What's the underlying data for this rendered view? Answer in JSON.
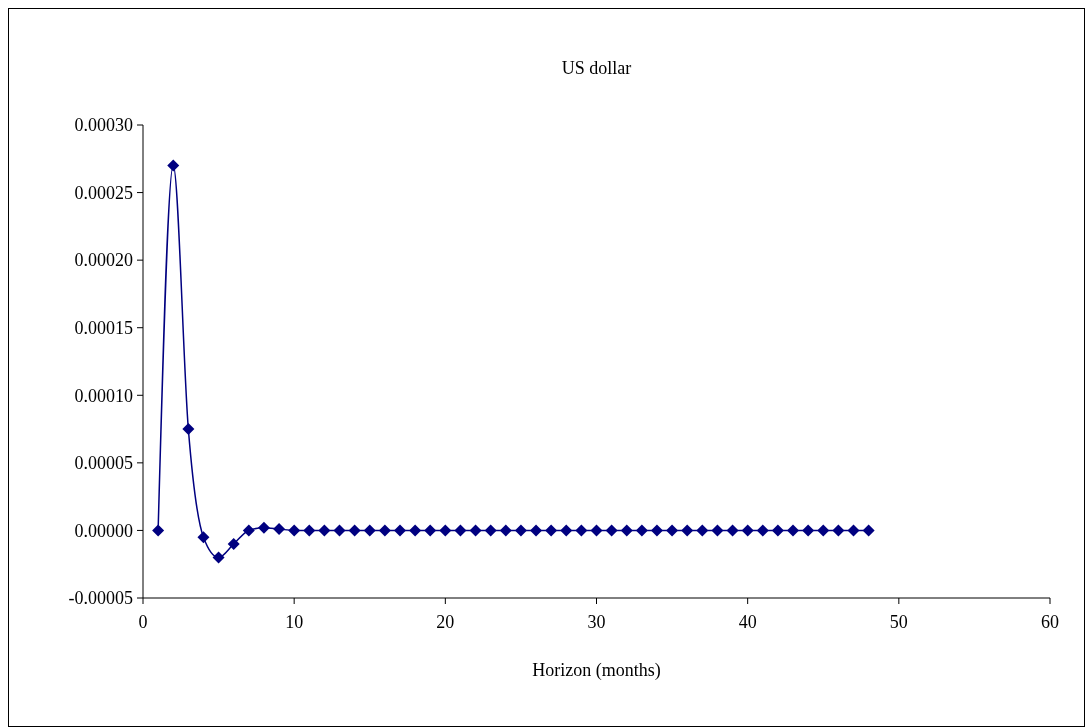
{
  "chart_data": {
    "type": "line",
    "title": "US dollar",
    "xlabel": "Horizon (months)",
    "x": [
      1,
      2,
      3,
      4,
      5,
      6,
      7,
      8,
      9,
      10,
      11,
      12,
      13,
      14,
      15,
      16,
      17,
      18,
      19,
      20,
      21,
      22,
      23,
      24,
      25,
      26,
      27,
      28,
      29,
      30,
      31,
      32,
      33,
      34,
      35,
      36,
      37,
      38,
      39,
      40,
      41,
      42,
      43,
      44,
      45,
      46,
      47,
      48
    ],
    "series": [
      {
        "color": "#000080",
        "values": [
          0,
          0.00027,
          7.5e-05,
          -5e-06,
          -2e-05,
          -1e-05,
          0,
          2e-06,
          1e-06,
          0,
          0,
          0,
          0,
          0,
          0,
          0,
          0,
          0,
          0,
          0,
          0,
          0,
          0,
          0,
          0,
          0,
          0,
          0,
          0,
          0,
          0,
          0,
          0,
          0,
          0,
          0,
          0,
          0,
          0,
          0,
          0,
          0,
          0,
          0,
          0,
          0,
          0,
          0
        ]
      }
    ],
    "xlim": [
      0,
      60
    ],
    "xticks": [
      0,
      10,
      20,
      30,
      40,
      50,
      60
    ],
    "ylim": [
      -5e-05,
      0.0003
    ],
    "yticks": [
      {
        "value": -5e-05,
        "label": "-0.00005"
      },
      {
        "value": 0,
        "label": "0.00000"
      },
      {
        "value": 5e-05,
        "label": "0.00005"
      },
      {
        "value": 0.0001,
        "label": "0.00010"
      },
      {
        "value": 0.00015,
        "label": "0.00015"
      },
      {
        "value": 0.0002,
        "label": "0.00020"
      },
      {
        "value": 0.00025,
        "label": "0.00025"
      },
      {
        "value": 0.0003,
        "label": "0.00030"
      }
    ],
    "grid": false,
    "marker": "diamond",
    "line_style": "solid"
  }
}
